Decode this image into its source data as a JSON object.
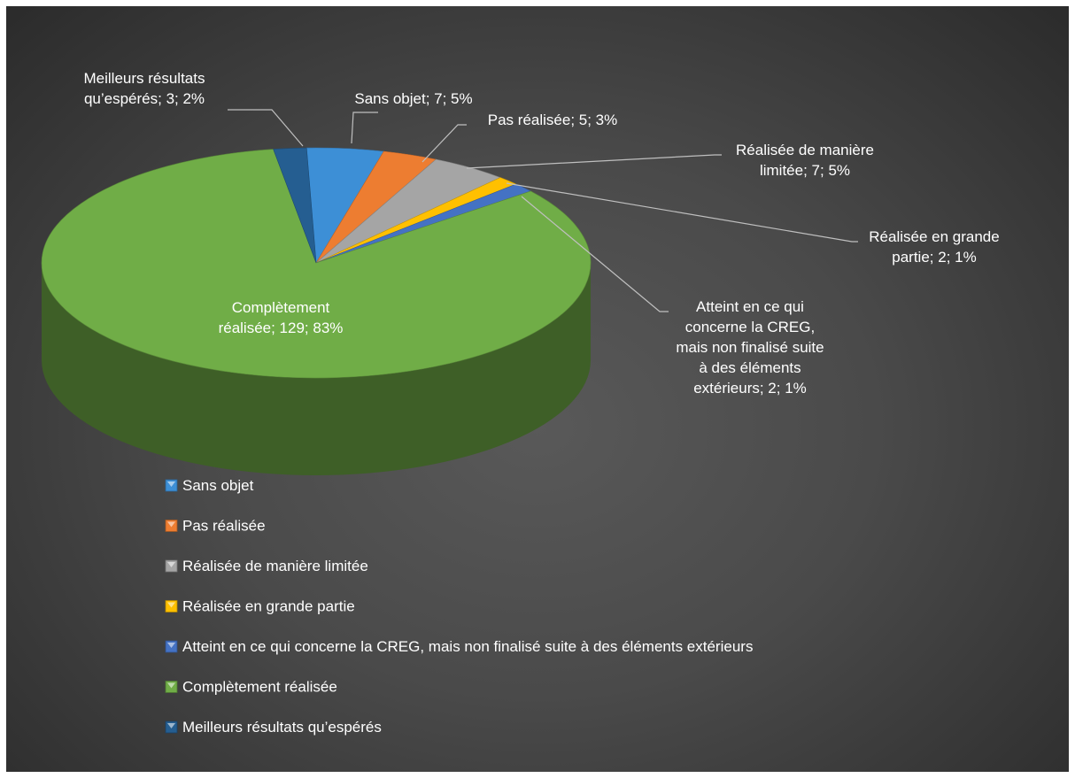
{
  "chart_data": {
    "type": "pie",
    "title": "",
    "slices": [
      {
        "name": "Sans objet",
        "value": 7,
        "percent": "5%",
        "label_lines": [
          "Sans objet; 7; 5%"
        ],
        "color": "#3d8fd6"
      },
      {
        "name": "Pas réalisée",
        "value": 5,
        "percent": "3%",
        "label_lines": [
          "Pas réalisée; 5; 3%"
        ],
        "color": "#ed7d31"
      },
      {
        "name": "Réalisée de manière limitée",
        "value": 7,
        "percent": "5%",
        "label_lines": [
          "Réalisée de manière",
          "limitée; 7; 5%"
        ],
        "color": "#a5a5a5"
      },
      {
        "name": "Réalisée en grande partie",
        "value": 2,
        "percent": "1%",
        "label_lines": [
          "Réalisée en grande",
          "partie; 2; 1%"
        ],
        "color": "#ffc000"
      },
      {
        "name": "Atteint en ce qui concerne la CREG, mais non finalisé suite à des éléments extérieurs",
        "value": 2,
        "percent": "1%",
        "label_lines": [
          "Atteint en ce qui",
          "concerne la CREG,",
          "mais non finalisé suite",
          "à des éléments",
          "extérieurs; 2; 1%"
        ],
        "color": "#4472c4"
      },
      {
        "name": "Complètement réalisée",
        "value": 129,
        "percent": "83%",
        "label_lines": [
          "Complètement",
          "réalisée; 129; 83%"
        ],
        "color": "#70ad47"
      },
      {
        "name": "Meilleurs résultats qu’espérés",
        "value": 3,
        "percent": "2%",
        "label_lines": [
          "Meilleurs résultats",
          "qu’espérés; 3; 2%"
        ],
        "color": "#255e91"
      }
    ],
    "legend": {
      "position": "bottom",
      "entries": [
        "Sans objet",
        "Pas réalisée",
        "Réalisée de manière limitée",
        "Réalisée en grande partie",
        "Atteint en ce qui concerne la CREG, mais non finalisé suite à des éléments extérieurs",
        "Complètement réalisée",
        "Meilleurs résultats qu’espérés"
      ]
    },
    "style": "3d-pie",
    "background": "#404040"
  }
}
